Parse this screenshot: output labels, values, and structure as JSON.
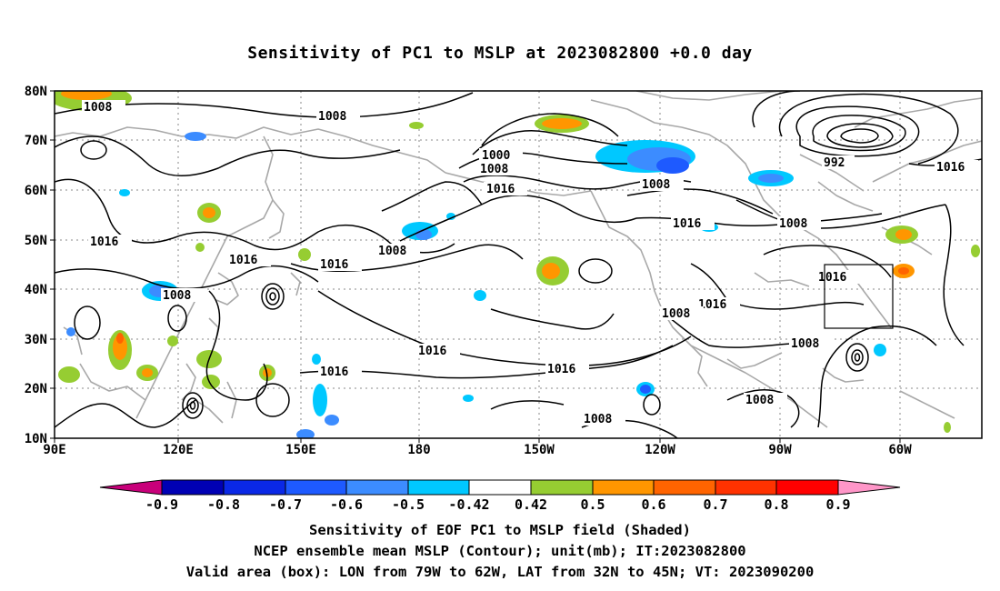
{
  "title": "Sensitivity of PC1 to MSLP at 2023082800 +0.0 day",
  "axes": {
    "lat_labels": [
      "80N",
      "70N",
      "60N",
      "50N",
      "40N",
      "30N",
      "20N",
      "10N"
    ],
    "lon_labels": [
      "90E",
      "120E",
      "150E",
      "180",
      "150W",
      "120W",
      "90W",
      "60W"
    ]
  },
  "contours": {
    "labels": [
      "1008",
      "1008",
      "1000",
      "1008",
      "992",
      "1016",
      "1016",
      "1016",
      "1008",
      "1016",
      "1016",
      "1016",
      "1008",
      "1008",
      "1016",
      "1016",
      "1008",
      "1016",
      "1016",
      "1008",
      "1008",
      "1008",
      "1008",
      "1016"
    ]
  },
  "colorbar": {
    "ticks": [
      "-0.9",
      "-0.8",
      "-0.7",
      "-0.6",
      "-0.5",
      "-0.42",
      "0.42",
      "0.5",
      "0.6",
      "0.7",
      "0.8",
      "0.9"
    ],
    "colors": [
      "#c8007a",
      "#0000b4",
      "#0a28e6",
      "#1e5aff",
      "#3c8cff",
      "#00c8ff",
      "#ffffff",
      "#96cd32",
      "#ff9600",
      "#ff6400",
      "#ff3200",
      "#ff0000",
      "#ff96c8"
    ]
  },
  "valid_box": {
    "lon_from": "79W",
    "lon_to": "62W",
    "lat_from": "32N",
    "lat_to": "45N"
  },
  "captions": {
    "line1": "Sensitivity of EOF PC1 to MSLP field (Shaded)",
    "line2": "NCEP ensemble mean MSLP (Contour); unit(mb); IT:2023082800",
    "line3": "Valid area (box): LON from 79W to 62W, LAT from 32N to 45N; VT: 2023090200"
  }
}
